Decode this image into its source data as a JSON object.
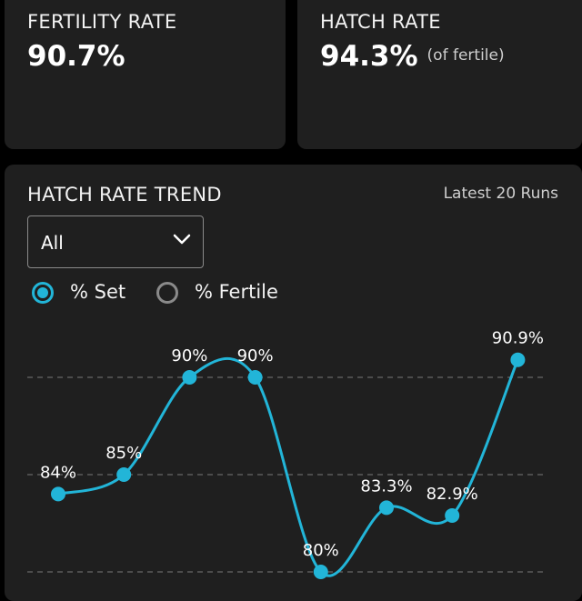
{
  "fertility": {
    "label": "FERTILITY RATE",
    "value": "90.7%"
  },
  "hatch": {
    "label": "HATCH RATE",
    "value": "94.3%",
    "sub": "(of fertile)"
  },
  "trend": {
    "title": "HATCH RATE TREND",
    "range_label": "Latest 20 Runs",
    "filter": {
      "selected": "All",
      "icon": "chevron-down-icon"
    },
    "radios": [
      {
        "label": "% Set",
        "selected": true
      },
      {
        "label": "% Fertile",
        "selected": false
      }
    ]
  },
  "colors": {
    "accent": "#22b5d8",
    "card": "#1f1f1f",
    "background": "#000000"
  },
  "chart_data": {
    "type": "line",
    "title": "",
    "xlabel": "",
    "ylabel": "",
    "values": [
      84,
      85,
      90,
      90,
      80,
      83.3,
      82.9,
      90.9
    ],
    "data_labels": [
      "84%",
      "85%",
      "90%",
      "90%",
      "80%",
      "83.3%",
      "82.9%",
      "90.9%"
    ],
    "ylim": [
      74.9,
      95
    ],
    "gridlines": [
      80,
      85,
      90
    ],
    "grid": true,
    "legend": "none"
  }
}
